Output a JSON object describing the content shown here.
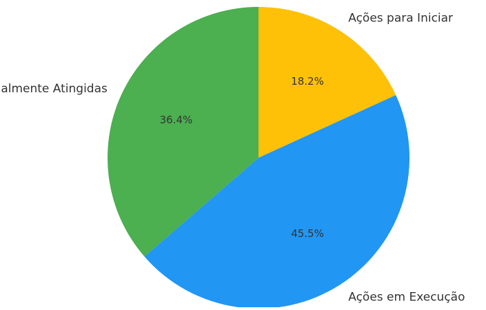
{
  "chart_data": {
    "type": "pie",
    "title": "",
    "start_angle_deg": 90,
    "direction": "clockwise",
    "slices": [
      {
        "label": "Ações para Iniciar",
        "value": 18.2,
        "display": "18.2%",
        "color": "#FFC107"
      },
      {
        "label": "Ações em Execução",
        "value": 45.5,
        "display": "45.5%",
        "color": "#2196F3"
      },
      {
        "label": "Metas Parcialmente Atingidas",
        "value": 36.4,
        "display": "36.4%",
        "color": "#4CAF50"
      }
    ]
  }
}
